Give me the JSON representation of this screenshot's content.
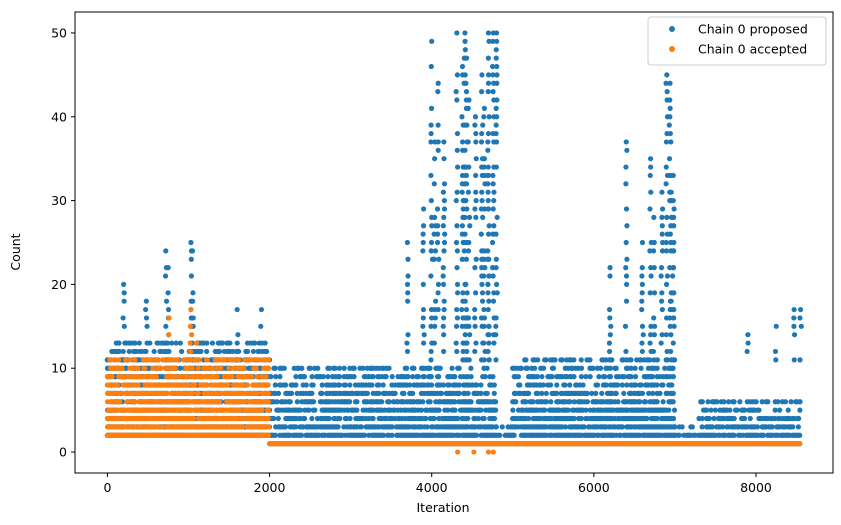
{
  "chart_data": {
    "type": "scatter",
    "title": "",
    "xlabel": "Iteration",
    "ylabel": "Count",
    "xlim": [
      -400,
      8950
    ],
    "ylim": [
      -2.5,
      52.5
    ],
    "xticks": [
      0,
      2000,
      4000,
      6000,
      8000
    ],
    "yticks": [
      0,
      10,
      20,
      30,
      40,
      50
    ],
    "grid": false,
    "legend_position": "upper-right",
    "series": [
      {
        "name": "Chain 0 proposed",
        "color": "#1f77b4",
        "segments": [
          {
            "x_range": [
              0,
              2000
            ],
            "y_min": 2,
            "y_max": 13
          },
          {
            "x_range": [
              2000,
              4800
            ],
            "y_min": 1,
            "y_max": 10
          },
          {
            "x_range": [
              4800,
              5000
            ],
            "y_min": 1,
            "y_max": 3
          },
          {
            "x_range": [
              5000,
              7000
            ],
            "y_min": 1,
            "y_max": 11
          },
          {
            "x_range": [
              7000,
              7300
            ],
            "y_min": 1,
            "y_max": 3
          },
          {
            "x_range": [
              7300,
              8550
            ],
            "y_min": 1,
            "y_max": 6
          }
        ],
        "peaks": [
          {
            "x": 200,
            "y": 20
          },
          {
            "x": 480,
            "y": 18
          },
          {
            "x": 720,
            "y": 24
          },
          {
            "x": 750,
            "y": 22
          },
          {
            "x": 1030,
            "y": 25
          },
          {
            "x": 1050,
            "y": 24
          },
          {
            "x": 1600,
            "y": 17
          },
          {
            "x": 1900,
            "y": 17
          },
          {
            "x": 3700,
            "y": 25
          },
          {
            "x": 3900,
            "y": 29
          },
          {
            "x": 4000,
            "y": 49
          },
          {
            "x": 4040,
            "y": 37
          },
          {
            "x": 4080,
            "y": 44
          },
          {
            "x": 4150,
            "y": 37
          },
          {
            "x": 4310,
            "y": 50
          },
          {
            "x": 4380,
            "y": 46
          },
          {
            "x": 4410,
            "y": 50
          },
          {
            "x": 4430,
            "y": 47
          },
          {
            "x": 4460,
            "y": 42
          },
          {
            "x": 4540,
            "y": 40
          },
          {
            "x": 4620,
            "y": 45
          },
          {
            "x": 4650,
            "y": 41
          },
          {
            "x": 4700,
            "y": 50
          },
          {
            "x": 4760,
            "y": 50
          },
          {
            "x": 4800,
            "y": 50
          },
          {
            "x": 4700,
            "y": 38
          },
          {
            "x": 6200,
            "y": 22
          },
          {
            "x": 6400,
            "y": 37
          },
          {
            "x": 6600,
            "y": 25
          },
          {
            "x": 6700,
            "y": 35
          },
          {
            "x": 6740,
            "y": 28
          },
          {
            "x": 6840,
            "y": 31
          },
          {
            "x": 6900,
            "y": 45
          },
          {
            "x": 6940,
            "y": 44
          },
          {
            "x": 6950,
            "y": 37
          },
          {
            "x": 6980,
            "y": 33
          },
          {
            "x": 6990,
            "y": 29
          },
          {
            "x": 7900,
            "y": 14
          },
          {
            "x": 8250,
            "y": 15
          },
          {
            "x": 8470,
            "y": 17
          },
          {
            "x": 8550,
            "y": 17
          }
        ]
      },
      {
        "name": "Chain 0 accepted",
        "color": "#ff7f0e",
        "segments": [
          {
            "x_range": [
              0,
              2000
            ],
            "y_min": 2,
            "y_max": 11
          },
          {
            "x_range": [
              2000,
              8550
            ],
            "y_min": 1,
            "y_max": 1
          }
        ],
        "peaks": [
          {
            "x": 760,
            "y": 16
          },
          {
            "x": 1030,
            "y": 17
          },
          {
            "x": 1100,
            "y": 13
          },
          {
            "x": 4320,
            "y": 0
          },
          {
            "x": 4520,
            "y": 0
          },
          {
            "x": 4700,
            "y": 0
          },
          {
            "x": 4760,
            "y": 0
          }
        ]
      }
    ]
  }
}
